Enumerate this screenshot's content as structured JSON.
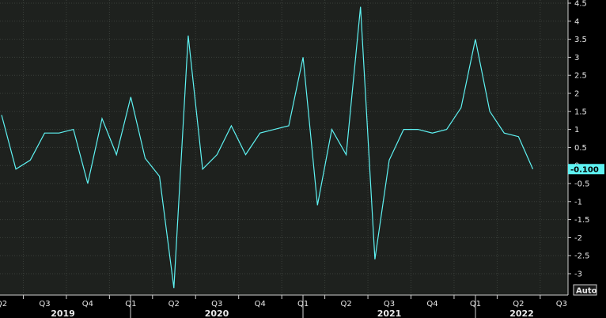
{
  "chart_data": {
    "type": "line",
    "title": "",
    "xlabel": "",
    "ylabel": "",
    "line_color": "#5ef2f2",
    "background": "#1e211e",
    "ylim": [
      -3.5,
      4.5
    ],
    "y_ticks": [
      "4.5",
      "4",
      "3.5",
      "3",
      "2.5",
      "2",
      "1.5",
      "1",
      "0.5",
      "0",
      "-0.5",
      "-1",
      "-1.5",
      "-2",
      "-2.5",
      "-3"
    ],
    "x_tick_labels": [
      "Q2",
      "Q3",
      "Q4",
      "Q1",
      "Q2",
      "Q3",
      "Q4",
      "Q1",
      "Q2",
      "Q3",
      "Q4",
      "Q1",
      "Q2",
      "Q3"
    ],
    "year_labels": [
      "2019",
      "2020",
      "2021",
      "2022"
    ],
    "last_value_label": "-0.100",
    "auto_label": "Auto",
    "grid": true,
    "series": [
      {
        "x": [
          "2019-04",
          "2019-05",
          "2019-06",
          "2019-07",
          "2019-08",
          "2019-09",
          "2019-10",
          "2019-11",
          "2019-12",
          "2020-01",
          "2020-02",
          "2020-03",
          "2020-04",
          "2020-05",
          "2020-06",
          "2020-07",
          "2020-08",
          "2020-09",
          "2020-10",
          "2020-11",
          "2020-12",
          "2021-01",
          "2021-02",
          "2021-03",
          "2021-04",
          "2021-05",
          "2021-06",
          "2021-07",
          "2021-08",
          "2021-09",
          "2021-10",
          "2021-11",
          "2021-12",
          "2022-01",
          "2022-02",
          "2022-03",
          "2022-04",
          "2022-05"
        ],
        "values": [
          1.4,
          -0.1,
          0.15,
          0.9,
          0.9,
          1.0,
          -0.5,
          1.3,
          0.3,
          1.9,
          0.2,
          -0.3,
          -3.4,
          3.6,
          -0.1,
          0.3,
          1.1,
          0.3,
          0.9,
          1.0,
          1.1,
          3.0,
          -1.1,
          1.0,
          0.3,
          4.4,
          -2.6,
          0.15,
          1.0,
          1.0,
          0.9,
          1.0,
          1.6,
          3.5,
          1.5,
          0.9,
          0.8,
          -0.1
        ]
      }
    ]
  }
}
